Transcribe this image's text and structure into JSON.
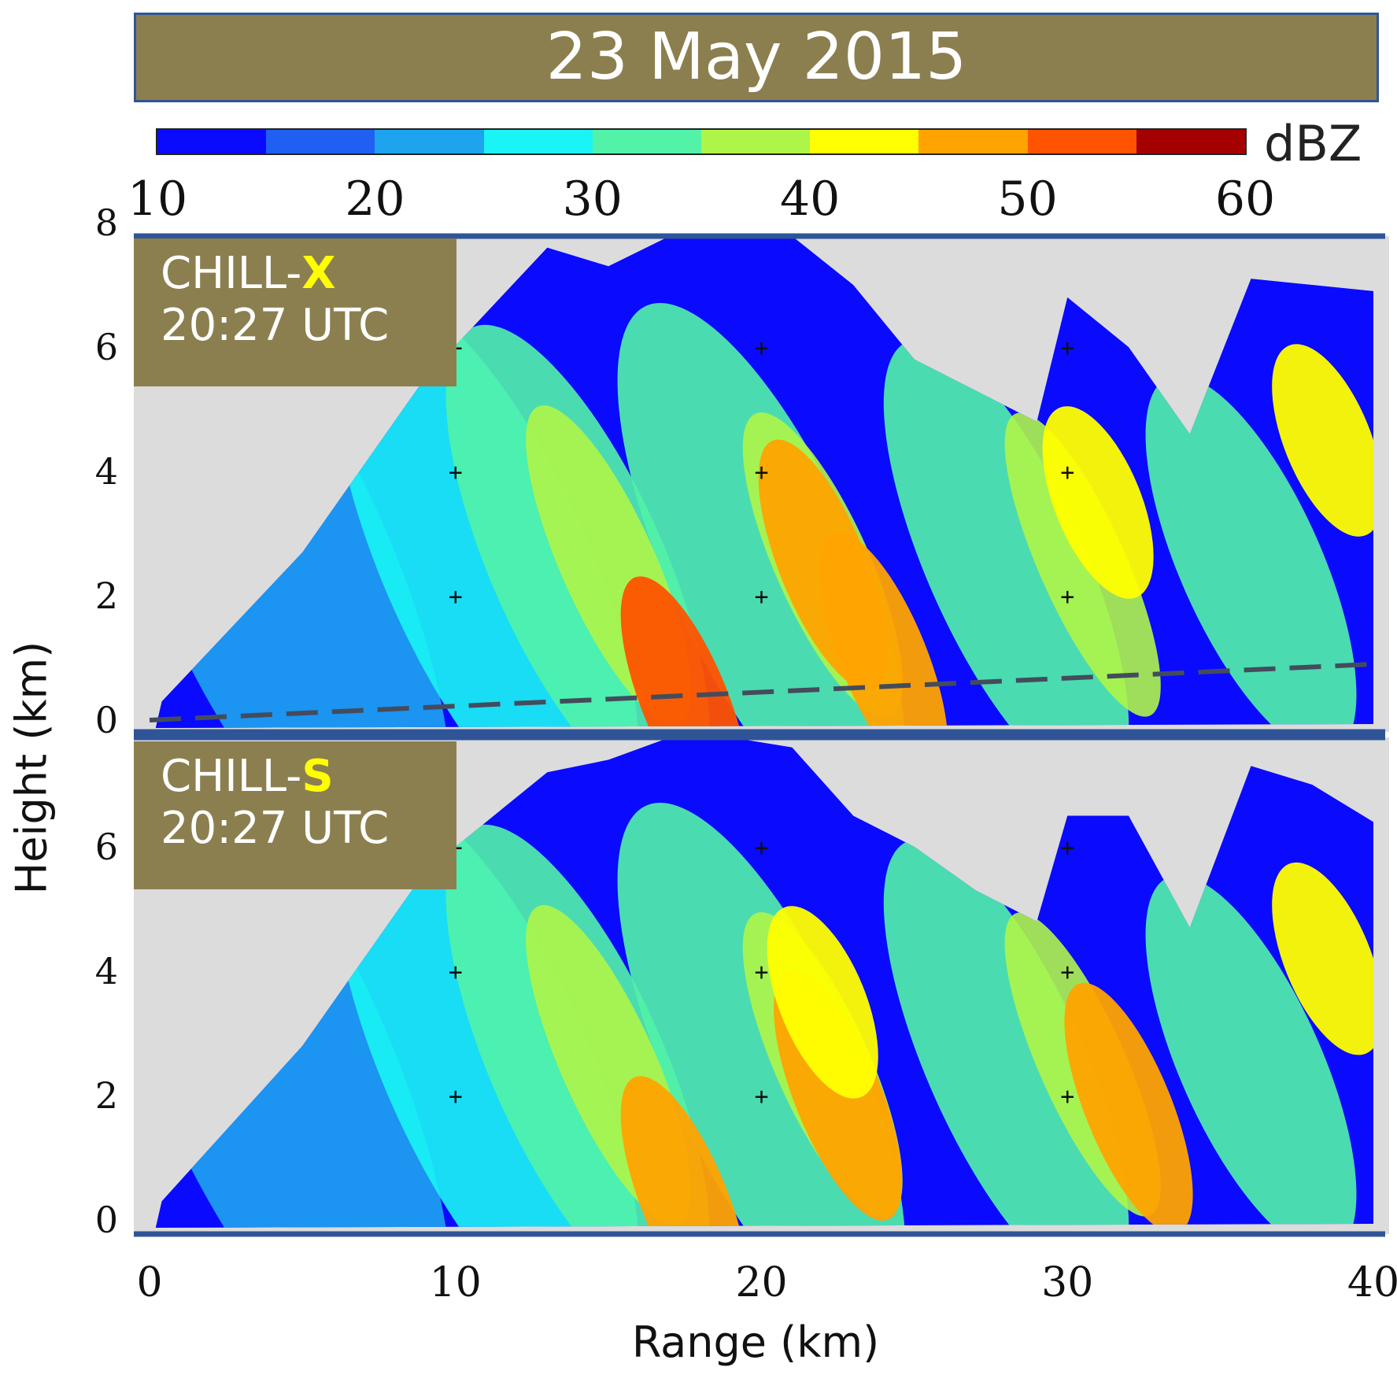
{
  "title": "23 May 2015",
  "colorbar": {
    "unit": "dBZ",
    "ticks": [
      "10",
      "20",
      "30",
      "40",
      "50",
      "60"
    ],
    "min": 10,
    "max": 60,
    "colors": [
      "#0a0aff",
      "#1f5ff2",
      "#1ea3ef",
      "#1af4f4",
      "#52f2a8",
      "#aef549",
      "#ffff00",
      "#ffa300",
      "#ff5300",
      "#a50000"
    ]
  },
  "panels": [
    {
      "radar_prefix": "CHILL-",
      "radar_band": "X",
      "time": "20:27 UTC"
    },
    {
      "radar_prefix": "CHILL-",
      "radar_band": "S",
      "time": "20:27 UTC"
    }
  ],
  "chart_data": {
    "type": "heatmap",
    "variable": "reflectivity",
    "unit": "dBZ",
    "xlabel": "Range (km)",
    "ylabel": "Height (km)",
    "xlim": [
      0,
      40
    ],
    "ylim": [
      0,
      8
    ],
    "x_ticks": [
      "0",
      "10",
      "20",
      "30",
      "40"
    ],
    "panels": [
      {
        "name": "CHILL-X",
        "y_ticks": [
          "0",
          "2",
          "4",
          "6",
          "8"
        ],
        "echo_top_km": [
          [
            0.4,
            0.3
          ],
          [
            5,
            2.7
          ],
          [
            9,
            5.5
          ],
          [
            13,
            7.6
          ],
          [
            15,
            7.3
          ],
          [
            17,
            8.0
          ],
          [
            19,
            8.0
          ],
          [
            21,
            8.0
          ],
          [
            23,
            7.0
          ],
          [
            25,
            5.8
          ],
          [
            27,
            5.3
          ],
          [
            29,
            4.8
          ],
          [
            30,
            6.8
          ],
          [
            32,
            6.0
          ],
          [
            34,
            4.6
          ],
          [
            36,
            7.1
          ],
          [
            38,
            7.0
          ],
          [
            40,
            6.9
          ]
        ],
        "cores": [
          {
            "range_km": 22,
            "height_km": 2.5,
            "dbz": 45
          },
          {
            "range_km": 24,
            "height_km": 1.0,
            "dbz": 45
          },
          {
            "range_km": 17.5,
            "height_km": 0.3,
            "dbz": 50
          },
          {
            "range_km": 31,
            "height_km": 3.5,
            "dbz": 40
          },
          {
            "range_km": 38.5,
            "height_km": 4.5,
            "dbz": 40
          }
        ],
        "dashed_line": {
          "x": [
            0,
            40
          ],
          "y": [
            0,
            0.9
          ]
        }
      },
      {
        "name": "CHILL-S",
        "y_ticks": [
          "0",
          "2",
          "4",
          "6"
        ],
        "echo_top_km": [
          [
            0.4,
            0.3
          ],
          [
            5,
            2.8
          ],
          [
            9,
            5.6
          ],
          [
            13,
            7.2
          ],
          [
            15,
            7.4
          ],
          [
            17,
            8.0
          ],
          [
            19,
            7.8
          ],
          [
            21,
            7.6
          ],
          [
            23,
            6.5
          ],
          [
            25,
            6.0
          ],
          [
            27,
            5.3
          ],
          [
            29,
            4.8
          ],
          [
            30,
            6.5
          ],
          [
            32,
            6.5
          ],
          [
            34,
            4.7
          ],
          [
            36,
            7.3
          ],
          [
            38,
            7.0
          ],
          [
            40,
            6.4
          ]
        ],
        "cores": [
          {
            "range_km": 22.5,
            "height_km": 2.0,
            "dbz": 45
          },
          {
            "range_km": 32,
            "height_km": 1.8,
            "dbz": 45
          },
          {
            "range_km": 17.5,
            "height_km": 0.3,
            "dbz": 45
          },
          {
            "range_km": 22,
            "height_km": 3.5,
            "dbz": 40
          },
          {
            "range_km": 38.5,
            "height_km": 4.2,
            "dbz": 40
          }
        ]
      }
    ],
    "grid_markers": {
      "x": [
        10,
        20,
        30
      ],
      "y": [
        2,
        4,
        6
      ],
      "symbol": "+"
    }
  }
}
